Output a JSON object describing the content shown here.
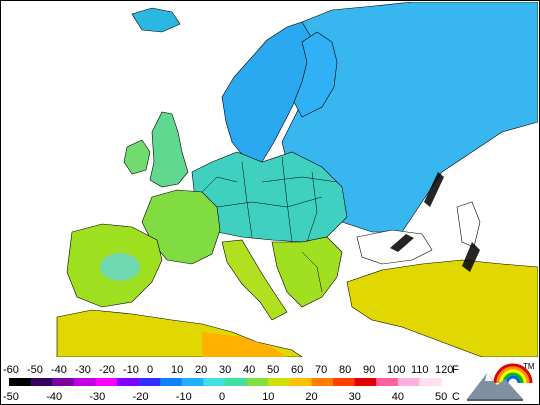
{
  "colors": {
    "ocean": "#ffffff",
    "border": "#000000",
    "cold": "#1aa0ff",
    "cool": "#40d0f0",
    "mild": "#40e0a0",
    "warm": "#90e020",
    "hot": "#e0e000",
    "hotter": "#ffb000"
  },
  "legend": {
    "fahrenheit_ticks": [
      "-60",
      "-50",
      "-40",
      "-30",
      "-20",
      "-10",
      "0",
      "10",
      "20",
      "30",
      "40",
      "50",
      "60",
      "70",
      "80",
      "90",
      "100",
      "110",
      "120"
    ],
    "fahrenheit_unit": "F",
    "celsius_ticks": [
      "-50",
      "-40",
      "-30",
      "-20",
      "-10",
      "0",
      "10",
      "20",
      "30",
      "40",
      "50"
    ],
    "celsius_unit": "C",
    "colorscale": [
      "#000000",
      "#3a0060",
      "#7a00a0",
      "#c000e0",
      "#ff00ff",
      "#8000ff",
      "#3030ff",
      "#1080ff",
      "#20b0ff",
      "#40e0e0",
      "#40e0a0",
      "#80e040",
      "#d0e000",
      "#ffc000",
      "#ff8000",
      "#ff4000",
      "#e00000",
      "#ff60a0",
      "#ffb0e0",
      "#ffe0f0"
    ]
  },
  "logo": {
    "mark": "TM",
    "icon": "mountain-rainbow-icon"
  }
}
